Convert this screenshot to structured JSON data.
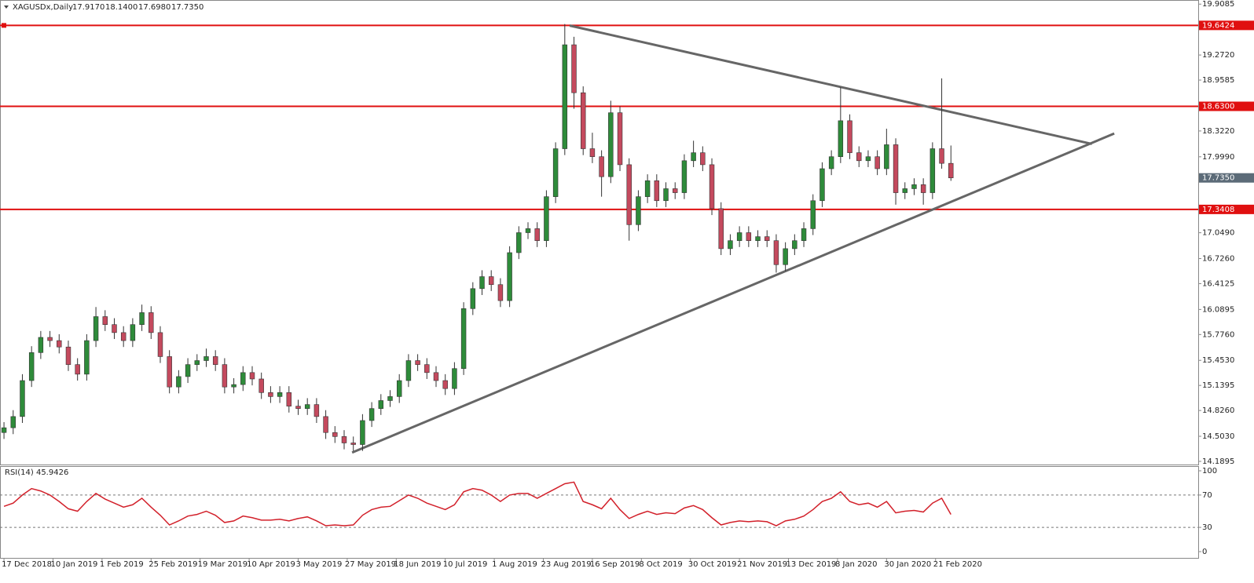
{
  "chart_data": [
    {
      "type": "candlestick",
      "title": "XAGUSDx,Daily",
      "last_labels": [
        "17.9170",
        "18.1400",
        "17.6980",
        "17.7350"
      ],
      "x": [
        0,
        3,
        6,
        9,
        12,
        15,
        18,
        21,
        24,
        27,
        30,
        33,
        36,
        39,
        42,
        45,
        48,
        51,
        54,
        57,
        60,
        63,
        66,
        69,
        72,
        75,
        78,
        81,
        84,
        87,
        90,
        93,
        96,
        99,
        102,
        105,
        108,
        111,
        114,
        117,
        120,
        123,
        126,
        129,
        132,
        135,
        138,
        141,
        144,
        147,
        150,
        153,
        156,
        159,
        162,
        165,
        168,
        171,
        174,
        177,
        180,
        183,
        186,
        189,
        192,
        195,
        198,
        201,
        204,
        207,
        210,
        213,
        216,
        219,
        222,
        225,
        228,
        231,
        234,
        237,
        240,
        243,
        246,
        249,
        252,
        255,
        258,
        261,
        264,
        267,
        270,
        273,
        276,
        279,
        282,
        285,
        288,
        291,
        294,
        297,
        300,
        303,
        306,
        309
      ],
      "ohlc": [
        [
          14.55,
          14.68,
          14.47,
          14.61
        ],
        [
          14.61,
          14.83,
          14.53,
          14.75
        ],
        [
          14.75,
          15.28,
          14.67,
          15.2
        ],
        [
          15.2,
          15.63,
          15.12,
          15.55
        ],
        [
          15.55,
          15.82,
          15.47,
          15.74
        ],
        [
          15.74,
          15.82,
          15.62,
          15.7
        ],
        [
          15.7,
          15.78,
          15.54,
          15.62
        ],
        [
          15.62,
          15.7,
          15.32,
          15.4
        ],
        [
          15.4,
          15.48,
          15.2,
          15.28
        ],
        [
          15.28,
          15.78,
          15.2,
          15.7
        ],
        [
          15.7,
          16.12,
          15.62,
          16.0
        ],
        [
          16.0,
          16.08,
          15.82,
          15.9
        ],
        [
          15.9,
          15.98,
          15.72,
          15.8
        ],
        [
          15.8,
          15.88,
          15.62,
          15.7
        ],
        [
          15.7,
          15.98,
          15.62,
          15.9
        ],
        [
          15.9,
          16.15,
          15.82,
          16.05
        ],
        [
          16.05,
          16.13,
          15.72,
          15.8
        ],
        [
          15.8,
          15.88,
          15.42,
          15.5
        ],
        [
          15.5,
          15.58,
          15.04,
          15.12
        ],
        [
          15.12,
          15.33,
          15.04,
          15.25
        ],
        [
          15.25,
          15.48,
          15.17,
          15.4
        ],
        [
          15.4,
          15.53,
          15.32,
          15.45
        ],
        [
          15.45,
          15.6,
          15.37,
          15.5
        ],
        [
          15.5,
          15.58,
          15.32,
          15.4
        ],
        [
          15.4,
          15.48,
          15.04,
          15.12
        ],
        [
          15.12,
          15.23,
          15.04,
          15.15
        ],
        [
          15.15,
          15.38,
          15.07,
          15.3
        ],
        [
          15.3,
          15.38,
          15.14,
          15.22
        ],
        [
          15.22,
          15.3,
          14.97,
          15.05
        ],
        [
          15.05,
          15.13,
          14.92,
          15.0
        ],
        [
          15.0,
          15.13,
          14.92,
          15.05
        ],
        [
          15.05,
          15.13,
          14.8,
          14.88
        ],
        [
          14.88,
          14.96,
          14.77,
          14.85
        ],
        [
          14.85,
          14.98,
          14.77,
          14.9
        ],
        [
          14.9,
          14.98,
          14.67,
          14.75
        ],
        [
          14.75,
          14.83,
          14.47,
          14.55
        ],
        [
          14.55,
          14.63,
          14.42,
          14.5
        ],
        [
          14.5,
          14.58,
          14.34,
          14.42
        ],
        [
          14.42,
          14.5,
          14.32,
          14.4
        ],
        [
          14.4,
          14.78,
          14.32,
          14.7
        ],
        [
          14.7,
          14.93,
          14.62,
          14.85
        ],
        [
          14.85,
          15.03,
          14.77,
          14.95
        ],
        [
          14.95,
          15.08,
          14.87,
          15.0
        ],
        [
          15.0,
          15.28,
          14.92,
          15.2
        ],
        [
          15.2,
          15.53,
          15.12,
          15.45
        ],
        [
          15.45,
          15.53,
          15.32,
          15.4
        ],
        [
          15.4,
          15.48,
          15.22,
          15.3
        ],
        [
          15.3,
          15.38,
          15.12,
          15.2
        ],
        [
          15.2,
          15.28,
          15.02,
          15.1
        ],
        [
          15.1,
          15.43,
          15.02,
          15.35
        ],
        [
          15.35,
          16.18,
          15.27,
          16.1
        ],
        [
          16.1,
          16.43,
          16.02,
          16.35
        ],
        [
          16.35,
          16.58,
          16.27,
          16.5
        ],
        [
          16.5,
          16.58,
          16.32,
          16.4
        ],
        [
          16.4,
          16.48,
          16.12,
          16.2
        ],
        [
          16.2,
          16.88,
          16.12,
          16.8
        ],
        [
          16.8,
          17.13,
          16.72,
          17.05
        ],
        [
          17.05,
          17.18,
          16.97,
          17.1
        ],
        [
          17.1,
          17.18,
          16.87,
          16.95
        ],
        [
          16.95,
          17.58,
          16.87,
          17.5
        ],
        [
          17.5,
          18.18,
          17.42,
          18.1
        ],
        [
          18.1,
          19.66,
          18.02,
          19.4
        ],
        [
          19.4,
          19.5,
          18.6,
          18.8
        ],
        [
          18.8,
          18.88,
          18.02,
          18.1
        ],
        [
          18.1,
          18.3,
          17.92,
          18.0
        ],
        [
          18.0,
          18.08,
          17.5,
          17.75
        ],
        [
          17.75,
          18.7,
          17.67,
          18.55
        ],
        [
          18.55,
          18.63,
          17.82,
          17.9
        ],
        [
          17.9,
          17.98,
          16.95,
          17.15
        ],
        [
          17.15,
          17.58,
          17.07,
          17.5
        ],
        [
          17.5,
          17.78,
          17.42,
          17.7
        ],
        [
          17.7,
          17.78,
          17.37,
          17.45
        ],
        [
          17.45,
          17.68,
          17.37,
          17.6
        ],
        [
          17.6,
          17.68,
          17.47,
          17.55
        ],
        [
          17.55,
          18.03,
          17.47,
          17.95
        ],
        [
          17.95,
          18.2,
          17.87,
          18.05
        ],
        [
          18.05,
          18.13,
          17.82,
          17.9
        ],
        [
          17.9,
          17.98,
          17.27,
          17.35
        ],
        [
          17.35,
          17.43,
          16.77,
          16.85
        ],
        [
          16.85,
          17.03,
          16.77,
          16.95
        ],
        [
          16.95,
          17.13,
          16.87,
          17.05
        ],
        [
          17.05,
          17.13,
          16.87,
          16.95
        ],
        [
          16.95,
          17.08,
          16.87,
          17.0
        ],
        [
          17.0,
          17.08,
          16.87,
          16.95
        ],
        [
          16.95,
          17.03,
          16.55,
          16.65
        ],
        [
          16.65,
          16.93,
          16.57,
          16.85
        ],
        [
          16.85,
          17.03,
          16.77,
          16.95
        ],
        [
          16.95,
          17.18,
          16.87,
          17.1
        ],
        [
          17.1,
          17.53,
          17.02,
          17.45
        ],
        [
          17.45,
          17.93,
          17.37,
          17.85
        ],
        [
          17.85,
          18.08,
          17.77,
          18.0
        ],
        [
          18.0,
          18.87,
          17.92,
          18.45
        ],
        [
          18.45,
          18.53,
          17.97,
          18.05
        ],
        [
          18.05,
          18.13,
          17.87,
          17.95
        ],
        [
          17.95,
          18.08,
          17.87,
          18.0
        ],
        [
          18.0,
          18.08,
          17.77,
          17.85
        ],
        [
          17.85,
          18.35,
          17.77,
          18.15
        ],
        [
          18.15,
          18.23,
          17.4,
          17.55
        ],
        [
          17.55,
          17.68,
          17.47,
          17.6
        ],
        [
          17.6,
          17.73,
          17.52,
          17.65
        ],
        [
          17.65,
          17.73,
          17.4,
          17.55
        ],
        [
          17.55,
          18.18,
          17.47,
          18.1
        ],
        [
          18.1,
          18.98,
          17.85,
          17.917
        ],
        [
          17.917,
          18.14,
          17.698,
          17.735
        ]
      ],
      "up_color": "#2e8b3a",
      "down_color": "#c44a5e",
      "xlim": [
        -1.3,
        389.7
      ],
      "ylim": [
        14.15,
        19.96
      ],
      "xticks": [
        {
          "value": 0,
          "label": "17 Dec 2018"
        },
        {
          "value": 16,
          "label": "10 Jan 2019"
        },
        {
          "value": 32,
          "label": "1 Feb 2019"
        },
        {
          "value": 48,
          "label": "25 Feb 2019"
        },
        {
          "value": 64,
          "label": "19 Mar 2019"
        },
        {
          "value": 80,
          "label": "10 Apr 2019"
        },
        {
          "value": 96,
          "label": "3 May 2019"
        },
        {
          "value": 112,
          "label": "27 May 2019"
        },
        {
          "value": 128,
          "label": "18 Jun 2019"
        },
        {
          "value": 144,
          "label": "10 Jul 2019"
        },
        {
          "value": 160,
          "label": "1 Aug 2019"
        },
        {
          "value": 176,
          "label": "23 Aug 2019"
        },
        {
          "value": 192,
          "label": "16 Sep 2019"
        },
        {
          "value": 208,
          "label": "8 Oct 2019"
        },
        {
          "value": 224,
          "label": "30 Oct 2019"
        },
        {
          "value": 240,
          "label": "21 Nov 2019"
        },
        {
          "value": 256,
          "label": "13 Dec 2019"
        },
        {
          "value": 272,
          "label": "8 Jan 2020"
        },
        {
          "value": 288,
          "label": "30 Jan 2020"
        },
        {
          "value": 304,
          "label": "21 Feb 2020"
        }
      ],
      "yticks": [
        {
          "value": 19.9085,
          "label": "19.9085"
        },
        {
          "value": 19.272,
          "label": "19.2720"
        },
        {
          "value": 18.9585,
          "label": "18.9585"
        },
        {
          "value": 18.322,
          "label": "18.3220"
        },
        {
          "value": 17.999,
          "label": "17.9990"
        },
        {
          "value": 17.049,
          "label": "17.0490"
        },
        {
          "value": 16.726,
          "label": "16.7260"
        },
        {
          "value": 16.4125,
          "label": "16.4125"
        },
        {
          "value": 16.0895,
          "label": "16.0895"
        },
        {
          "value": 15.776,
          "label": "15.7760"
        },
        {
          "value": 15.453,
          "label": "15.4530"
        },
        {
          "value": 15.1395,
          "label": "15.1395"
        },
        {
          "value": 14.826,
          "label": "14.8260"
        },
        {
          "value": 14.503,
          "label": "14.5030"
        },
        {
          "value": 14.1895,
          "label": "14.1895"
        }
      ],
      "hlines": [
        {
          "value": 19.6424,
          "label": "19.6424"
        },
        {
          "value": 18.63,
          "label": "18.6300"
        },
        {
          "value": 17.3408,
          "label": "17.3408"
        }
      ],
      "hline_color": "#e01010",
      "trendlines": [
        {
          "x": [
            184.6,
            355
          ],
          "y": [
            19.64,
            18.16
          ]
        },
        {
          "x": [
            113.6,
            362.3
          ],
          "y": [
            14.3,
            18.29
          ]
        }
      ],
      "trendline_color": "#666666"
    },
    {
      "type": "line",
      "title": "RSI(14) 45.9426",
      "color": "#d2202a",
      "values": [
        56,
        60,
        70,
        78,
        75,
        70,
        62,
        53,
        50,
        62,
        72,
        65,
        60,
        55,
        58,
        66,
        55,
        45,
        33,
        38,
        44,
        46,
        50,
        45,
        36,
        38,
        44,
        42,
        39,
        39,
        40,
        38,
        41,
        43,
        38,
        32,
        33,
        32,
        33,
        45,
        52,
        55,
        56,
        63,
        70,
        66,
        60,
        56,
        52,
        58,
        74,
        78,
        76,
        70,
        62,
        70,
        72,
        72,
        66,
        72,
        78,
        84,
        86,
        62,
        58,
        53,
        66,
        52,
        41,
        46,
        50,
        46,
        48,
        47,
        54,
        57,
        52,
        42,
        33,
        36,
        38,
        37,
        38,
        37,
        32,
        38,
        40,
        44,
        52,
        62,
        66,
        74,
        62,
        58,
        60,
        55,
        62,
        48,
        50,
        51,
        49,
        60,
        66,
        45.9426
      ],
      "ylim": [
        0,
        100
      ],
      "yticks": [
        0,
        30,
        70,
        100
      ],
      "levels": [
        30,
        70
      ]
    }
  ]
}
